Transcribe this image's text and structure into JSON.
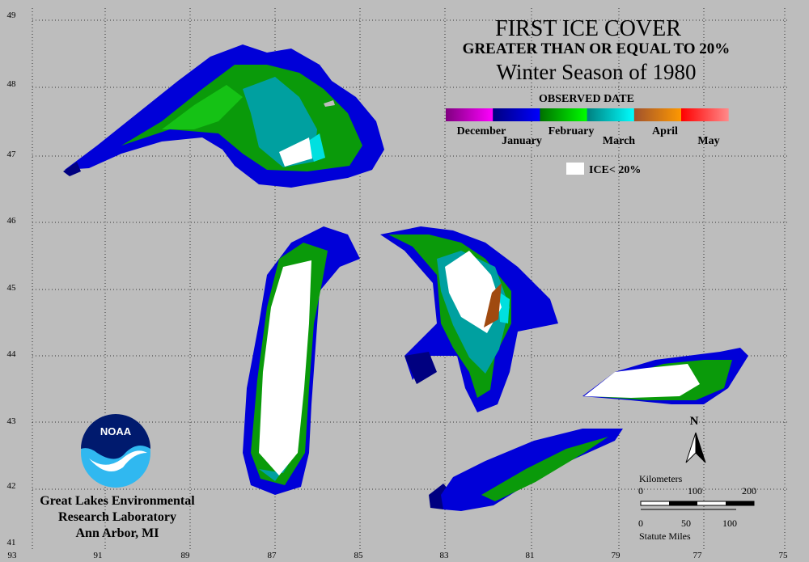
{
  "title": "FIRST ICE COVER",
  "subtitle": "GREATER THAN OR EQUAL TO 20%",
  "season": "Winter Season of 1980",
  "legend": {
    "title": "OBSERVED DATE",
    "months": [
      "December",
      "January",
      "February",
      "March",
      "April",
      "May"
    ],
    "no_ice_label": "ICE< 20%"
  },
  "latitudes": [
    "49",
    "48",
    "47",
    "46",
    "45",
    "44",
    "43",
    "42",
    "41"
  ],
  "longitudes": [
    "93",
    "91",
    "89",
    "87",
    "85",
    "83",
    "81",
    "79",
    "77",
    "75"
  ],
  "organization": {
    "logo": "NOAA",
    "lines": [
      "Great Lakes Environmental",
      "Research Laboratory",
      "Ann Arbor, MI"
    ]
  },
  "north_label": "N",
  "scale": {
    "km_title": "Kilometers",
    "km_ticks": [
      "0",
      "100",
      "200"
    ],
    "mi_ticks": [
      "0",
      "50",
      "100"
    ],
    "mi_title": "Statute Miles"
  }
}
